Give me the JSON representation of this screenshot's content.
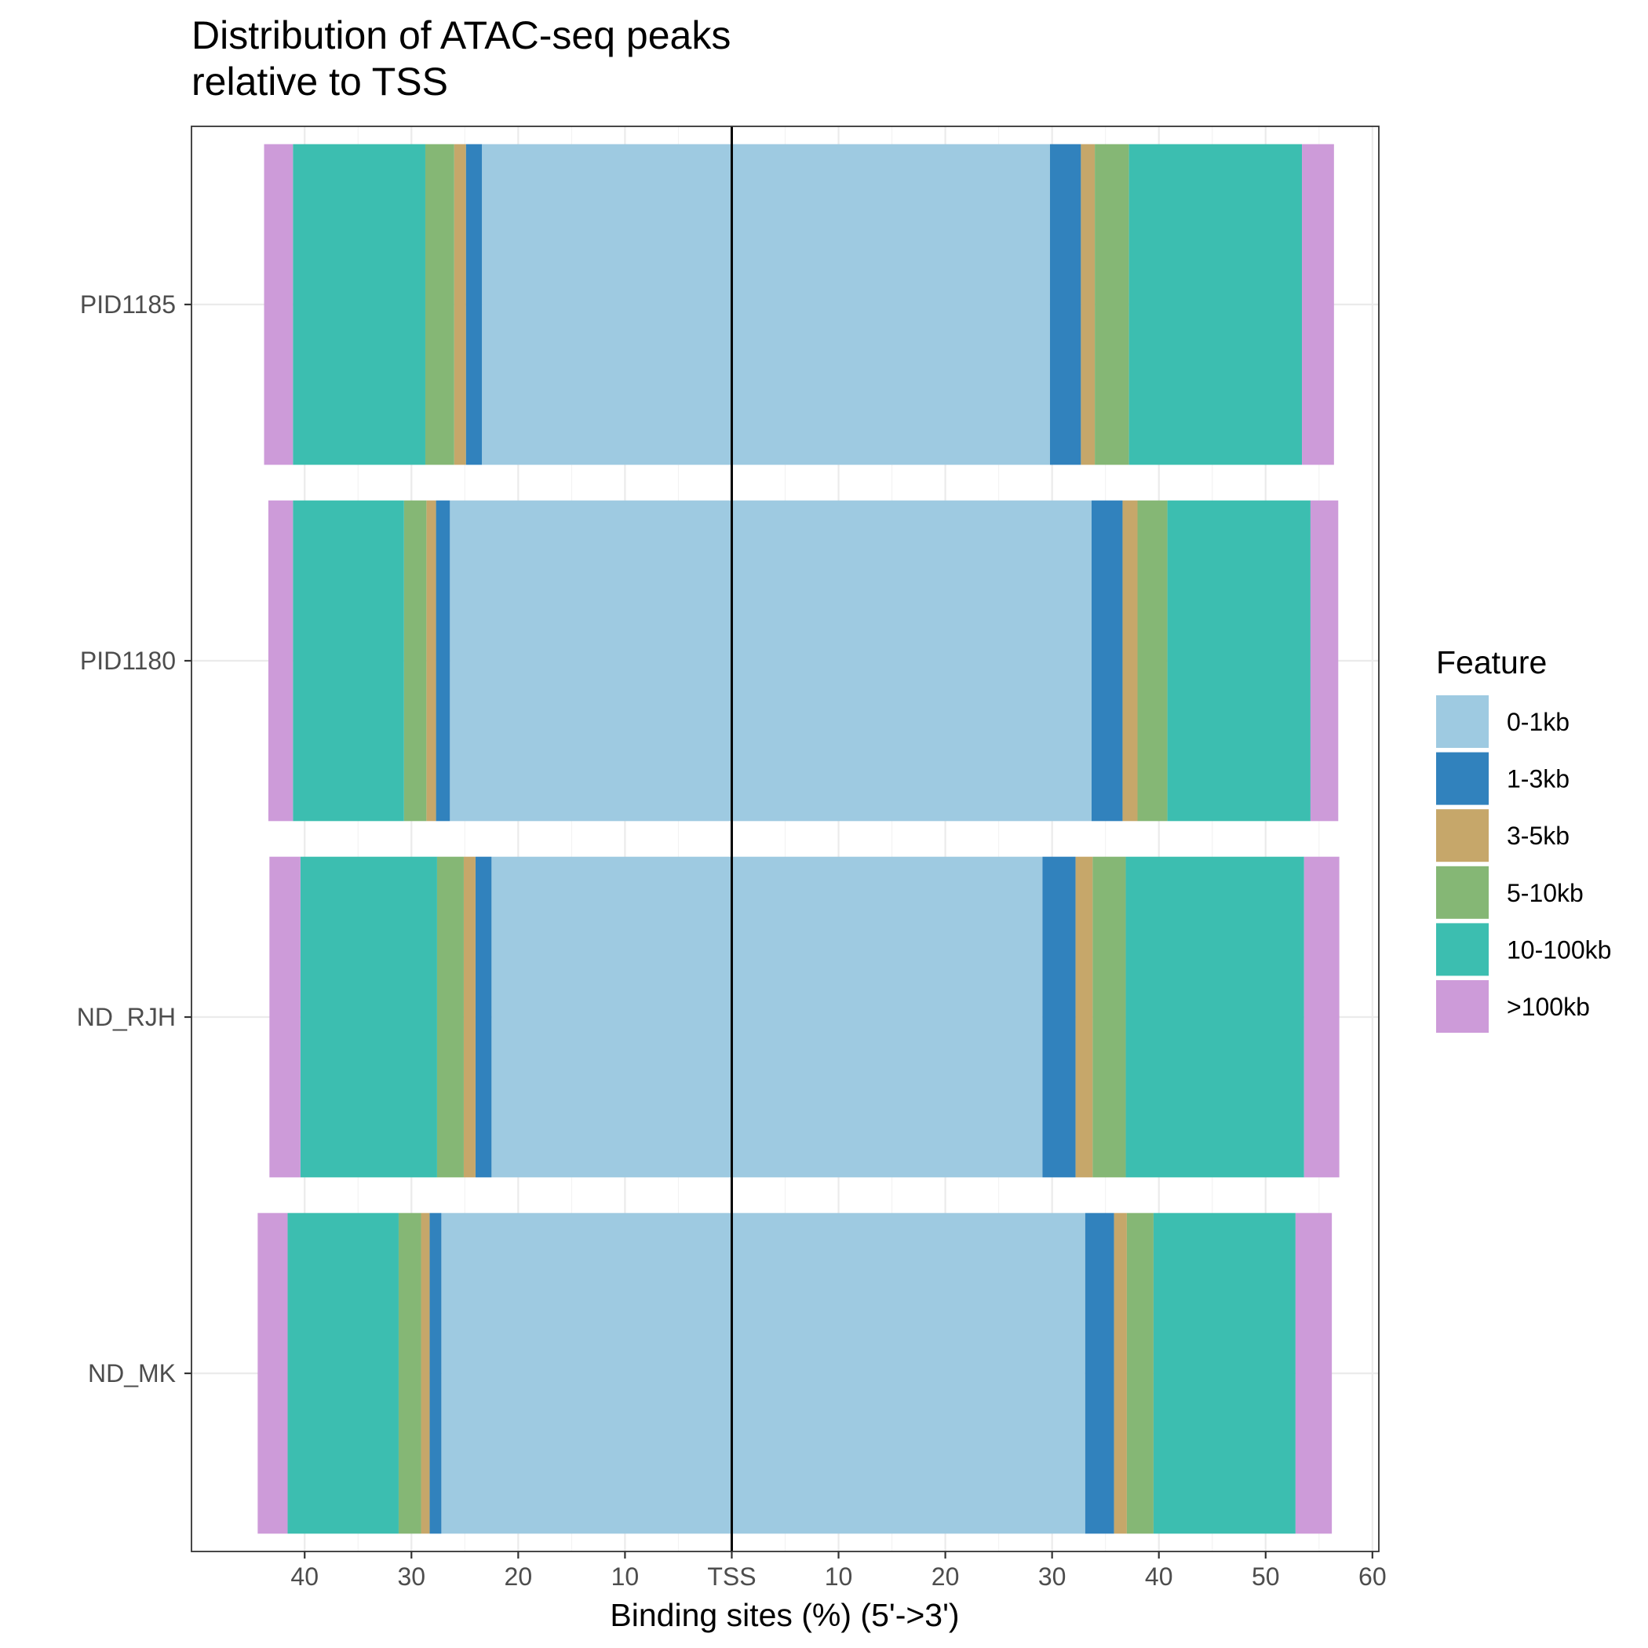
{
  "chart_data": {
    "type": "bar",
    "orientation": "horizontal",
    "stacked": "diverging",
    "title_lines": [
      "Distribution of ATAC-seq peaks",
      "relative to TSS"
    ],
    "xlabel": "Binding sites (%) (5'->3')",
    "ylabel": "",
    "center_label": "TSS",
    "xlim": [
      -50.6,
      60.6
    ],
    "x_ticks": [
      {
        "value": -40,
        "label": "40"
      },
      {
        "value": -30,
        "label": "30"
      },
      {
        "value": -20,
        "label": "20"
      },
      {
        "value": -10,
        "label": "10"
      },
      {
        "value": 0,
        "label": "TSS"
      },
      {
        "value": 10,
        "label": "10"
      },
      {
        "value": 20,
        "label": "20"
      },
      {
        "value": 30,
        "label": "30"
      },
      {
        "value": 40,
        "label": "40"
      },
      {
        "value": 50,
        "label": "50"
      },
      {
        "value": 60,
        "label": "60"
      }
    ],
    "grid": true,
    "categories": [
      "PID1185",
      "PID1180",
      "ND_RJH",
      "ND_MK"
    ],
    "legend": {
      "title": "Feature",
      "position": "right",
      "entries": [
        {
          "name": "0-1kb",
          "color": "#9ECAE1"
        },
        {
          "name": "1-3kb",
          "color": "#3182BD"
        },
        {
          "name": "3-5kb",
          "color": "#C6A76A"
        },
        {
          "name": "5-10kb",
          "color": "#85B775"
        },
        {
          "name": "10-100kb",
          "color": "#3CBEB0"
        },
        {
          "name": ">100kb",
          "color": "#CD9BD9"
        }
      ]
    },
    "upstream": [
      {
        "category": "PID1185",
        "values": [
          23.4,
          1.5,
          1.1,
          2.7,
          12.4,
          2.7
        ]
      },
      {
        "category": "PID1180",
        "values": [
          26.4,
          1.3,
          0.9,
          2.1,
          10.4,
          2.3
        ]
      },
      {
        "category": "ND_RJH",
        "values": [
          22.5,
          1.5,
          1.1,
          2.5,
          12.8,
          2.9
        ]
      },
      {
        "category": "ND_MK",
        "values": [
          27.2,
          1.1,
          0.8,
          2.1,
          10.4,
          2.8
        ]
      }
    ],
    "downstream": [
      {
        "category": "PID1185",
        "values": [
          29.8,
          2.9,
          1.3,
          3.2,
          16.2,
          3.0
        ]
      },
      {
        "category": "PID1180",
        "values": [
          33.7,
          2.9,
          1.4,
          2.8,
          13.4,
          2.6
        ]
      },
      {
        "category": "ND_RJH",
        "values": [
          29.1,
          3.1,
          1.6,
          3.1,
          16.7,
          3.3
        ]
      },
      {
        "category": "ND_MK",
        "values": [
          33.1,
          2.7,
          1.2,
          2.5,
          13.3,
          3.4
        ]
      }
    ],
    "reference_line": {
      "value": 0,
      "label": "TSS"
    }
  }
}
